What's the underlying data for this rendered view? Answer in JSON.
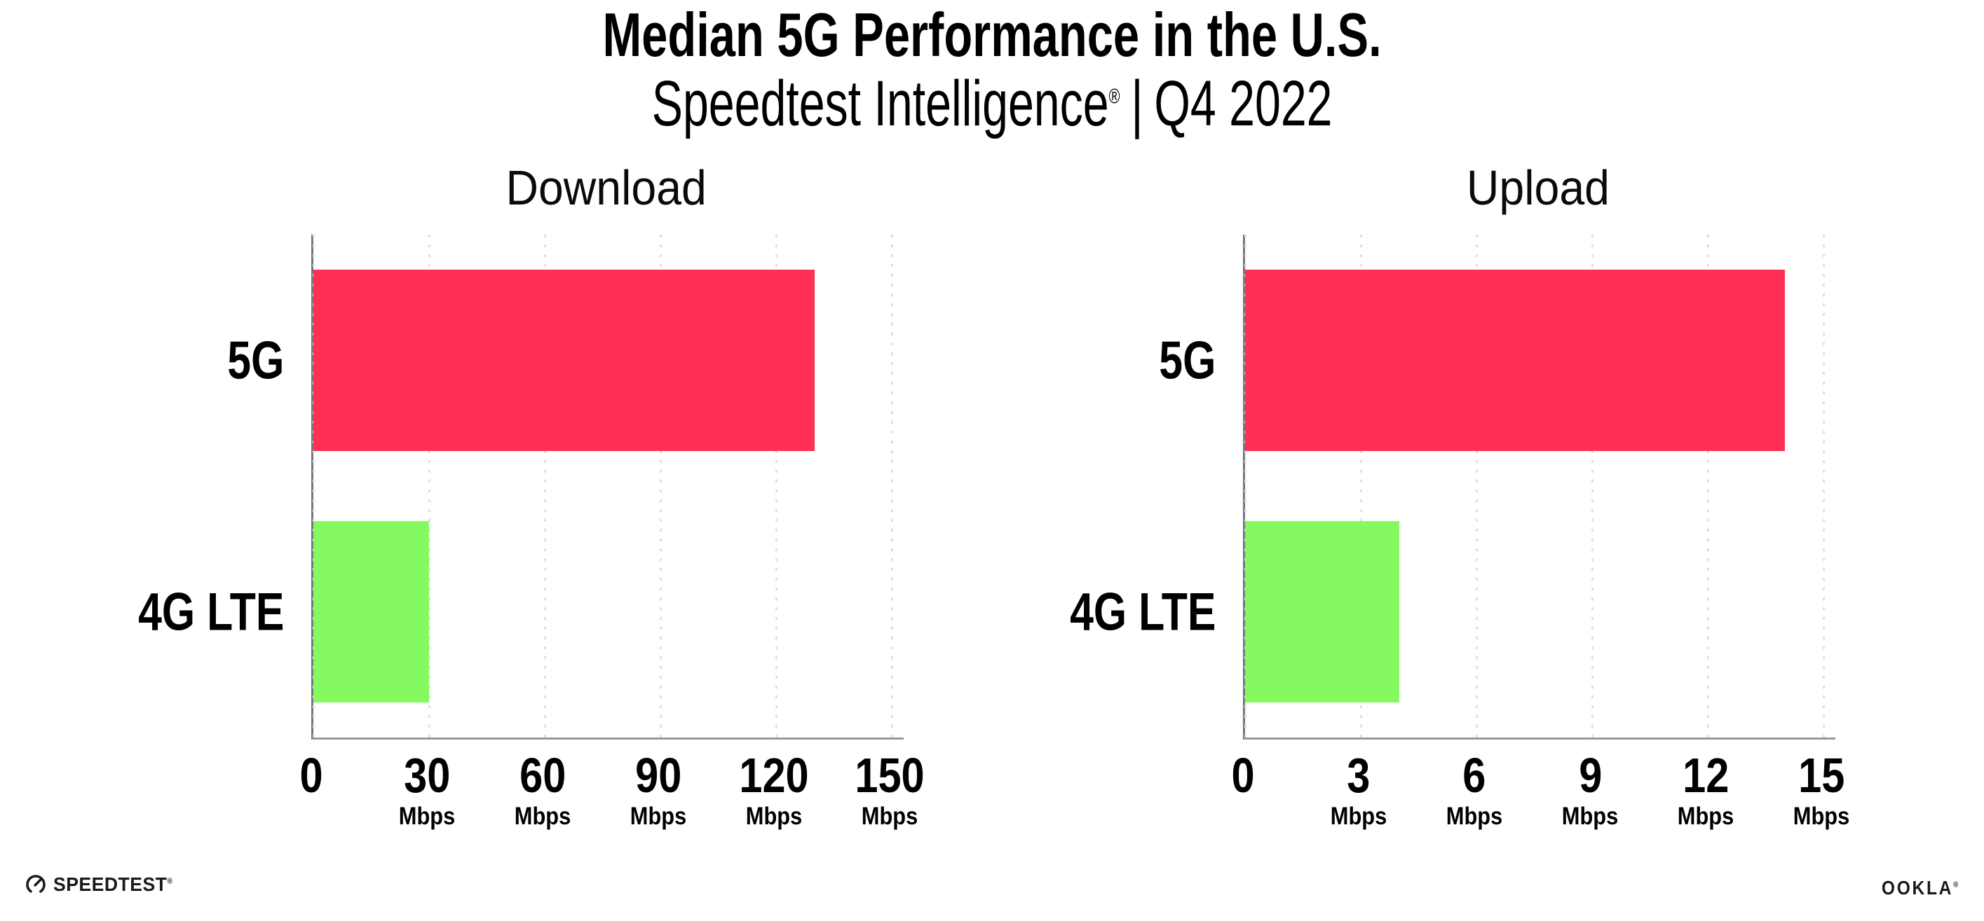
{
  "header": {
    "title": "Median 5G Performance in the U.S.",
    "subtitle_brand": "Speedtest Intelligence",
    "subtitle_reg": "®",
    "subtitle_sep": "|",
    "subtitle_period": "Q4 2022"
  },
  "footer": {
    "speedtest_label": "SPEEDTEST",
    "speedtest_reg": "®",
    "speedtest_icon": "gauge-icon",
    "ookla_label": "OOKLA",
    "ookla_reg": "®"
  },
  "colors": {
    "bar_5g": "#ff2f55",
    "bar_4g_lte": "#84fa60",
    "axis": "#98989d",
    "gridline": "#dfdfe7",
    "text": "#000000",
    "logo": "#1a1a1a"
  },
  "chart_data": [
    {
      "type": "bar",
      "orientation": "horizontal",
      "title": "Download",
      "categories": [
        "5G",
        "4G LTE"
      ],
      "values": [
        130,
        30
      ],
      "unit": "Mbps",
      "xticks": [
        0,
        30,
        60,
        90,
        120,
        150
      ],
      "xlim": [
        0,
        153
      ],
      "bar_colors": [
        "#ff2f55",
        "#84fa60"
      ],
      "grid": "vertical-dotted",
      "legend": "none"
    },
    {
      "type": "bar",
      "orientation": "horizontal",
      "title": "Upload",
      "categories": [
        "5G",
        "4G LTE"
      ],
      "values": [
        14,
        4
      ],
      "unit": "Mbps",
      "xticks": [
        0,
        3,
        6,
        9,
        12,
        15
      ],
      "xlim": [
        0,
        15.3
      ],
      "bar_colors": [
        "#ff2f55",
        "#84fa60"
      ],
      "grid": "vertical-dotted",
      "legend": "none"
    }
  ]
}
